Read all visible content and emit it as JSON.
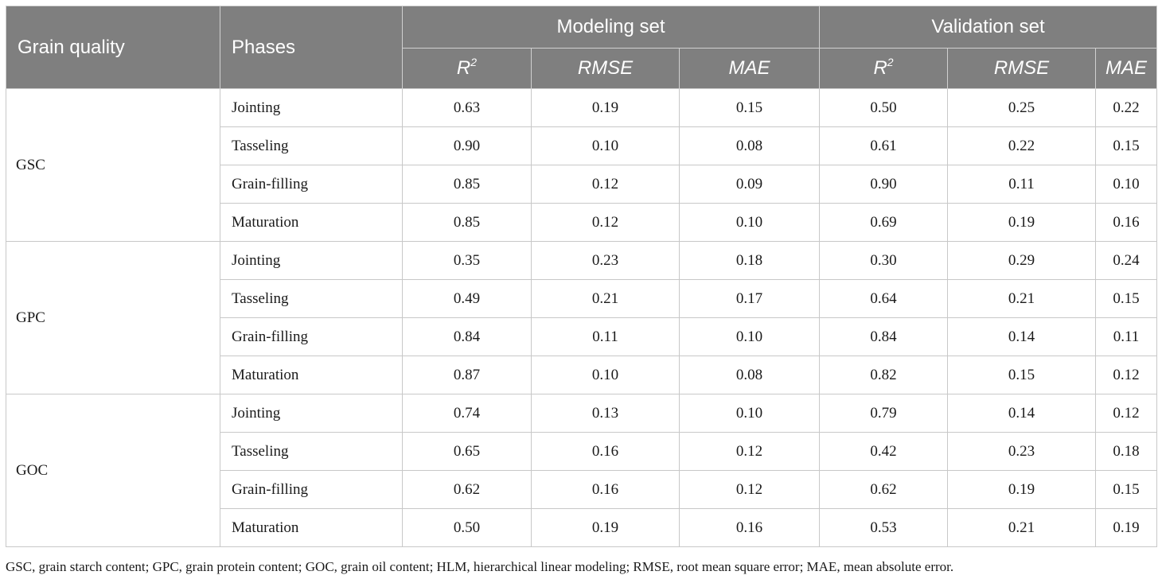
{
  "table": {
    "headers": {
      "grain_quality": "Grain quality",
      "phases": "Phases",
      "modeling_set": "Modeling set",
      "validation_set": "Validation set",
      "r_base": "R",
      "r_sup": "2",
      "rmse": "RMSE",
      "mae": "MAE"
    },
    "groups": [
      {
        "name": "GSC",
        "rows": [
          {
            "phase": "Jointing",
            "values": [
              "0.63",
              "0.19",
              "0.15",
              "0.50",
              "0.25",
              "0.22"
            ]
          },
          {
            "phase": "Tasseling",
            "values": [
              "0.90",
              "0.10",
              "0.08",
              "0.61",
              "0.22",
              "0.15"
            ]
          },
          {
            "phase": "Grain-filling",
            "values": [
              "0.85",
              "0.12",
              "0.09",
              "0.90",
              "0.11",
              "0.10"
            ]
          },
          {
            "phase": "Maturation",
            "values": [
              "0.85",
              "0.12",
              "0.10",
              "0.69",
              "0.19",
              "0.16"
            ]
          }
        ]
      },
      {
        "name": "GPC",
        "rows": [
          {
            "phase": "Jointing",
            "values": [
              "0.35",
              "0.23",
              "0.18",
              "0.30",
              "0.29",
              "0.24"
            ]
          },
          {
            "phase": "Tasseling",
            "values": [
              "0.49",
              "0.21",
              "0.17",
              "0.64",
              "0.21",
              "0.15"
            ]
          },
          {
            "phase": "Grain-filling",
            "values": [
              "0.84",
              "0.11",
              "0.10",
              "0.84",
              "0.14",
              "0.11"
            ]
          },
          {
            "phase": "Maturation",
            "values": [
              "0.87",
              "0.10",
              "0.08",
              "0.82",
              "0.15",
              "0.12"
            ]
          }
        ]
      },
      {
        "name": "GOC",
        "rows": [
          {
            "phase": "Jointing",
            "values": [
              "0.74",
              "0.13",
              "0.10",
              "0.79",
              "0.14",
              "0.12"
            ]
          },
          {
            "phase": "Tasseling",
            "values": [
              "0.65",
              "0.16",
              "0.12",
              "0.42",
              "0.23",
              "0.18"
            ]
          },
          {
            "phase": "Grain-filling",
            "values": [
              "0.62",
              "0.16",
              "0.12",
              "0.62",
              "0.19",
              "0.15"
            ]
          },
          {
            "phase": "Maturation",
            "values": [
              "0.50",
              "0.19",
              "0.16",
              "0.53",
              "0.21",
              "0.19"
            ]
          }
        ]
      }
    ]
  },
  "footnote": "GSC, grain starch content; GPC, grain protein content; GOC, grain oil content; HLM, hierarchical linear modeling; RMSE, root mean square error; MAE, mean absolute error."
}
